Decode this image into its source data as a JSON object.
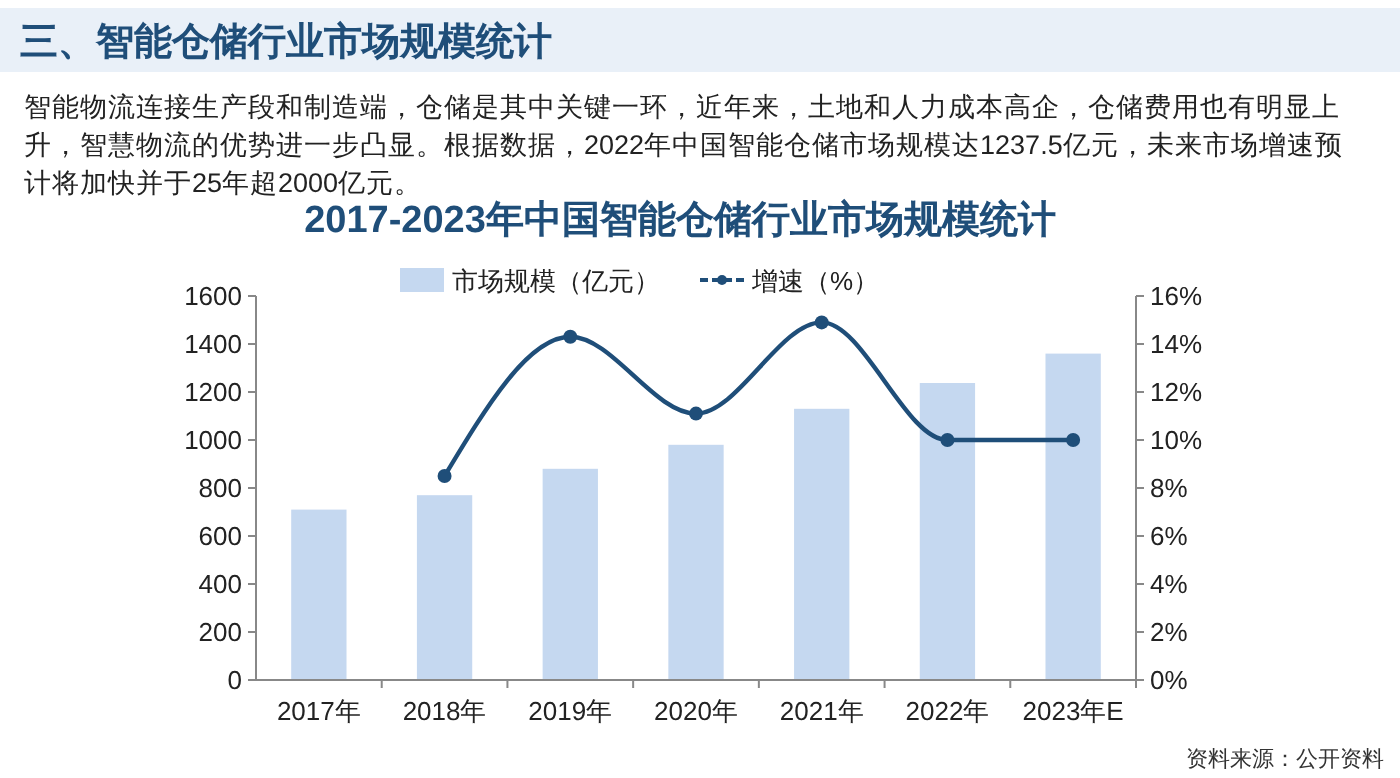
{
  "chart_data": {
    "type": "bar",
    "title": "2017-2023年中国智能仓储行业市场规模统计",
    "annotations": [
      "三、智能仓储行业市场规模统计",
      "智能物流连接生产段和制造端，仓储是其中关键一环，近年来，土地和人力成本高企，仓储费用也有明显上升，智慧物流的优势进一步凸显。根据数据，2022年中国智能仓储市场规模达1237.5亿元，未来市场增速预计将加快并于25年超2000亿元。",
      "资料来源：公开资料"
    ],
    "categories": [
      "2017年",
      "2018年",
      "2019年",
      "2020年",
      "2021年",
      "2022年",
      "2023年E"
    ],
    "series": [
      {
        "name": "市场规模（亿元）",
        "color": "#c5d8f0",
        "values": [
          710,
          770,
          880,
          980,
          1130,
          1237.5,
          1360
        ]
      },
      {
        "name": "增速（%）",
        "type": "line",
        "axis": "y2",
        "color": "#1f4e79",
        "values": [
          null,
          8.5,
          14.3,
          11.1,
          14.9,
          10.0,
          10.0
        ]
      }
    ],
    "ylim": [
      0,
      1600
    ],
    "yticks": [
      0,
      200,
      400,
      600,
      800,
      1000,
      1200,
      1400,
      1600
    ],
    "y2lim": [
      0,
      16
    ],
    "y2ticks": [
      {
        "value": 0,
        "label": "0%"
      },
      {
        "value": 2,
        "label": "2%"
      },
      {
        "value": 4,
        "label": "4%"
      },
      {
        "value": 6,
        "label": "6%"
      },
      {
        "value": 8,
        "label": "8%"
      },
      {
        "value": 10,
        "label": "10%"
      },
      {
        "value": 12,
        "label": "12%"
      },
      {
        "value": 14,
        "label": "14%"
      },
      {
        "value": 16,
        "label": "16%"
      }
    ],
    "marker": "circle",
    "legend": "top",
    "grid": false
  }
}
